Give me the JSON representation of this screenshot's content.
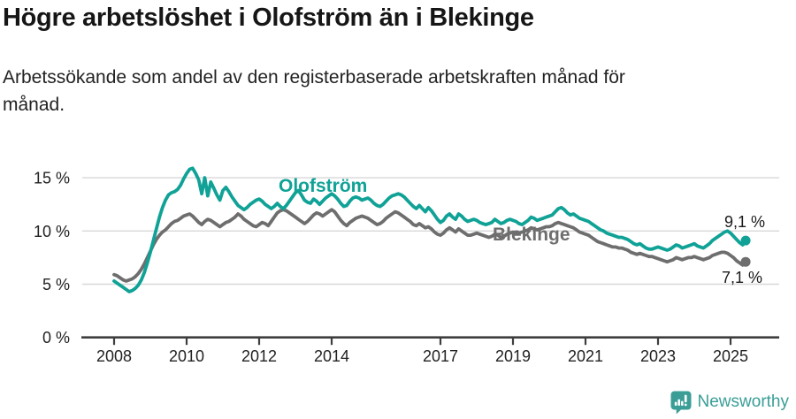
{
  "header": {
    "title": "Högre arbetslöshet i Olofström än i Blekinge",
    "subtitle": "Arbetssökande som andel av den registerbaserade arbetskraften månad för månad."
  },
  "footer": {
    "brand": "Newsworthy",
    "logo_color": "#3a9e97"
  },
  "colors": {
    "olofstrom_teal": "#10a296",
    "blekinge_gray": "#6e6e6e",
    "axis": "#3e3e3e",
    "gridline": "#d8d8d8",
    "text_dark": "#1a1a1a"
  },
  "chart_data": {
    "type": "line",
    "unit": "%",
    "frequency": "monthly",
    "start": "2008-01",
    "end": "2025-06",
    "grid": "horizontal",
    "legend_position": "inline-labels",
    "ylim": [
      0,
      16.5
    ],
    "x_tick_labels": [
      "2008",
      "2010",
      "2012",
      "2014",
      "2017",
      "2019",
      "2021",
      "2023",
      "2025"
    ],
    "y_ticks": [
      {
        "value": 0,
        "label": "0 %"
      },
      {
        "value": 5,
        "label": "5 %"
      },
      {
        "value": 10,
        "label": "10 %"
      },
      {
        "value": 15,
        "label": "15 %"
      }
    ],
    "series": [
      {
        "name": "Olofström",
        "color": "#10a296",
        "end_label": "9,1 %",
        "end_value": 9.1,
        "values": [
          5.3,
          5.1,
          4.9,
          4.7,
          4.5,
          4.3,
          4.4,
          4.6,
          4.9,
          5.4,
          6.1,
          7.0,
          8.0,
          9.1,
          10.2,
          11.3,
          12.2,
          12.9,
          13.4,
          13.6,
          13.7,
          13.9,
          14.3,
          14.9,
          15.4,
          15.8,
          15.9,
          15.4,
          14.8,
          13.5,
          15.0,
          13.3,
          14.6,
          14.0,
          13.4,
          12.9,
          13.8,
          14.1,
          13.7,
          13.2,
          12.8,
          12.4,
          12.2,
          12.0,
          12.2,
          12.5,
          12.7,
          12.9,
          13.0,
          12.8,
          12.5,
          12.3,
          12.1,
          12.3,
          12.6,
          12.3,
          12.1,
          12.4,
          12.8,
          13.2,
          13.6,
          13.8,
          13.4,
          12.9,
          12.7,
          12.6,
          13.0,
          12.8,
          12.5,
          12.8,
          13.1,
          13.3,
          13.5,
          13.3,
          13.0,
          12.6,
          12.3,
          12.4,
          12.8,
          13.1,
          13.2,
          13.1,
          12.9,
          13.0,
          13.1,
          12.9,
          12.6,
          12.4,
          12.3,
          12.5,
          12.8,
          13.1,
          13.3,
          13.4,
          13.5,
          13.4,
          13.2,
          12.9,
          12.6,
          12.3,
          12.1,
          12.4,
          12.1,
          11.8,
          12.2,
          11.9,
          11.5,
          11.1,
          10.8,
          11.0,
          11.4,
          11.6,
          11.3,
          11.1,
          11.6,
          11.4,
          11.1,
          10.9,
          11.0,
          11.1,
          11.0,
          10.8,
          10.7,
          10.6,
          10.7,
          10.8,
          11.1,
          10.9,
          10.7,
          10.8,
          11.0,
          11.1,
          11.0,
          10.9,
          10.7,
          10.6,
          10.8,
          11.0,
          11.3,
          11.2,
          11.0,
          11.1,
          11.2,
          11.3,
          11.4,
          11.5,
          11.8,
          12.1,
          12.2,
          12.0,
          11.7,
          11.5,
          11.6,
          11.4,
          11.2,
          11.1,
          11.0,
          10.9,
          10.7,
          10.5,
          10.3,
          10.1,
          10.0,
          9.8,
          9.7,
          9.6,
          9.5,
          9.4,
          9.4,
          9.3,
          9.2,
          9.0,
          8.8,
          8.7,
          8.8,
          8.6,
          8.4,
          8.3,
          8.3,
          8.4,
          8.5,
          8.4,
          8.3,
          8.2,
          8.3,
          8.5,
          8.7,
          8.6,
          8.4,
          8.5,
          8.6,
          8.7,
          8.8,
          8.6,
          8.5,
          8.4,
          8.6,
          8.8,
          9.1,
          9.3,
          9.5,
          9.7,
          9.9,
          10.0,
          9.8,
          9.5,
          9.2,
          8.9,
          8.7,
          9.1
        ]
      },
      {
        "name": "Blekinge",
        "color": "#6e6e6e",
        "end_label": "7,1 %",
        "end_value": 7.1,
        "values": [
          5.9,
          5.8,
          5.6,
          5.4,
          5.3,
          5.4,
          5.5,
          5.7,
          6.0,
          6.4,
          6.9,
          7.5,
          8.1,
          8.7,
          9.2,
          9.6,
          9.9,
          10.1,
          10.4,
          10.7,
          10.9,
          11.0,
          11.2,
          11.4,
          11.5,
          11.6,
          11.4,
          11.1,
          10.8,
          10.6,
          10.9,
          11.1,
          11.0,
          10.8,
          10.6,
          10.4,
          10.6,
          10.8,
          10.9,
          11.1,
          11.3,
          11.6,
          11.4,
          11.1,
          10.9,
          10.7,
          10.5,
          10.4,
          10.6,
          10.8,
          10.7,
          10.5,
          10.9,
          11.3,
          11.7,
          11.9,
          12.0,
          11.9,
          11.7,
          11.5,
          11.3,
          11.1,
          10.9,
          10.7,
          10.9,
          11.2,
          11.5,
          11.7,
          11.6,
          11.4,
          11.6,
          11.8,
          12.0,
          11.8,
          11.4,
          11.0,
          10.7,
          10.5,
          10.8,
          11.0,
          11.2,
          11.3,
          11.4,
          11.3,
          11.2,
          11.0,
          10.8,
          10.6,
          10.7,
          10.9,
          11.2,
          11.4,
          11.6,
          11.8,
          11.7,
          11.5,
          11.3,
          11.1,
          10.9,
          10.6,
          10.5,
          10.7,
          10.5,
          10.3,
          10.4,
          10.2,
          9.9,
          9.7,
          9.6,
          9.8,
          10.1,
          10.3,
          10.1,
          9.9,
          10.2,
          10.0,
          9.8,
          9.6,
          9.6,
          9.7,
          9.8,
          9.7,
          9.6,
          9.5,
          9.4,
          9.5,
          9.7,
          9.6,
          9.4,
          9.5,
          9.7,
          9.8,
          9.9,
          9.8,
          9.8,
          9.9,
          10.0,
          10.1,
          10.3,
          10.2,
          10.1,
          10.2,
          10.3,
          10.4,
          10.4,
          10.5,
          10.7,
          10.8,
          10.7,
          10.6,
          10.5,
          10.4,
          10.3,
          10.1,
          9.9,
          9.8,
          9.7,
          9.6,
          9.4,
          9.2,
          9.0,
          8.9,
          8.8,
          8.7,
          8.6,
          8.5,
          8.5,
          8.4,
          8.4,
          8.3,
          8.2,
          8.0,
          7.9,
          7.8,
          7.9,
          7.8,
          7.7,
          7.6,
          7.6,
          7.5,
          7.4,
          7.3,
          7.2,
          7.1,
          7.2,
          7.3,
          7.5,
          7.4,
          7.3,
          7.4,
          7.5,
          7.5,
          7.6,
          7.5,
          7.4,
          7.3,
          7.4,
          7.5,
          7.7,
          7.8,
          7.9,
          8.0,
          8.0,
          7.9,
          7.7,
          7.5,
          7.2,
          7.0,
          6.8,
          7.1
        ]
      }
    ]
  }
}
